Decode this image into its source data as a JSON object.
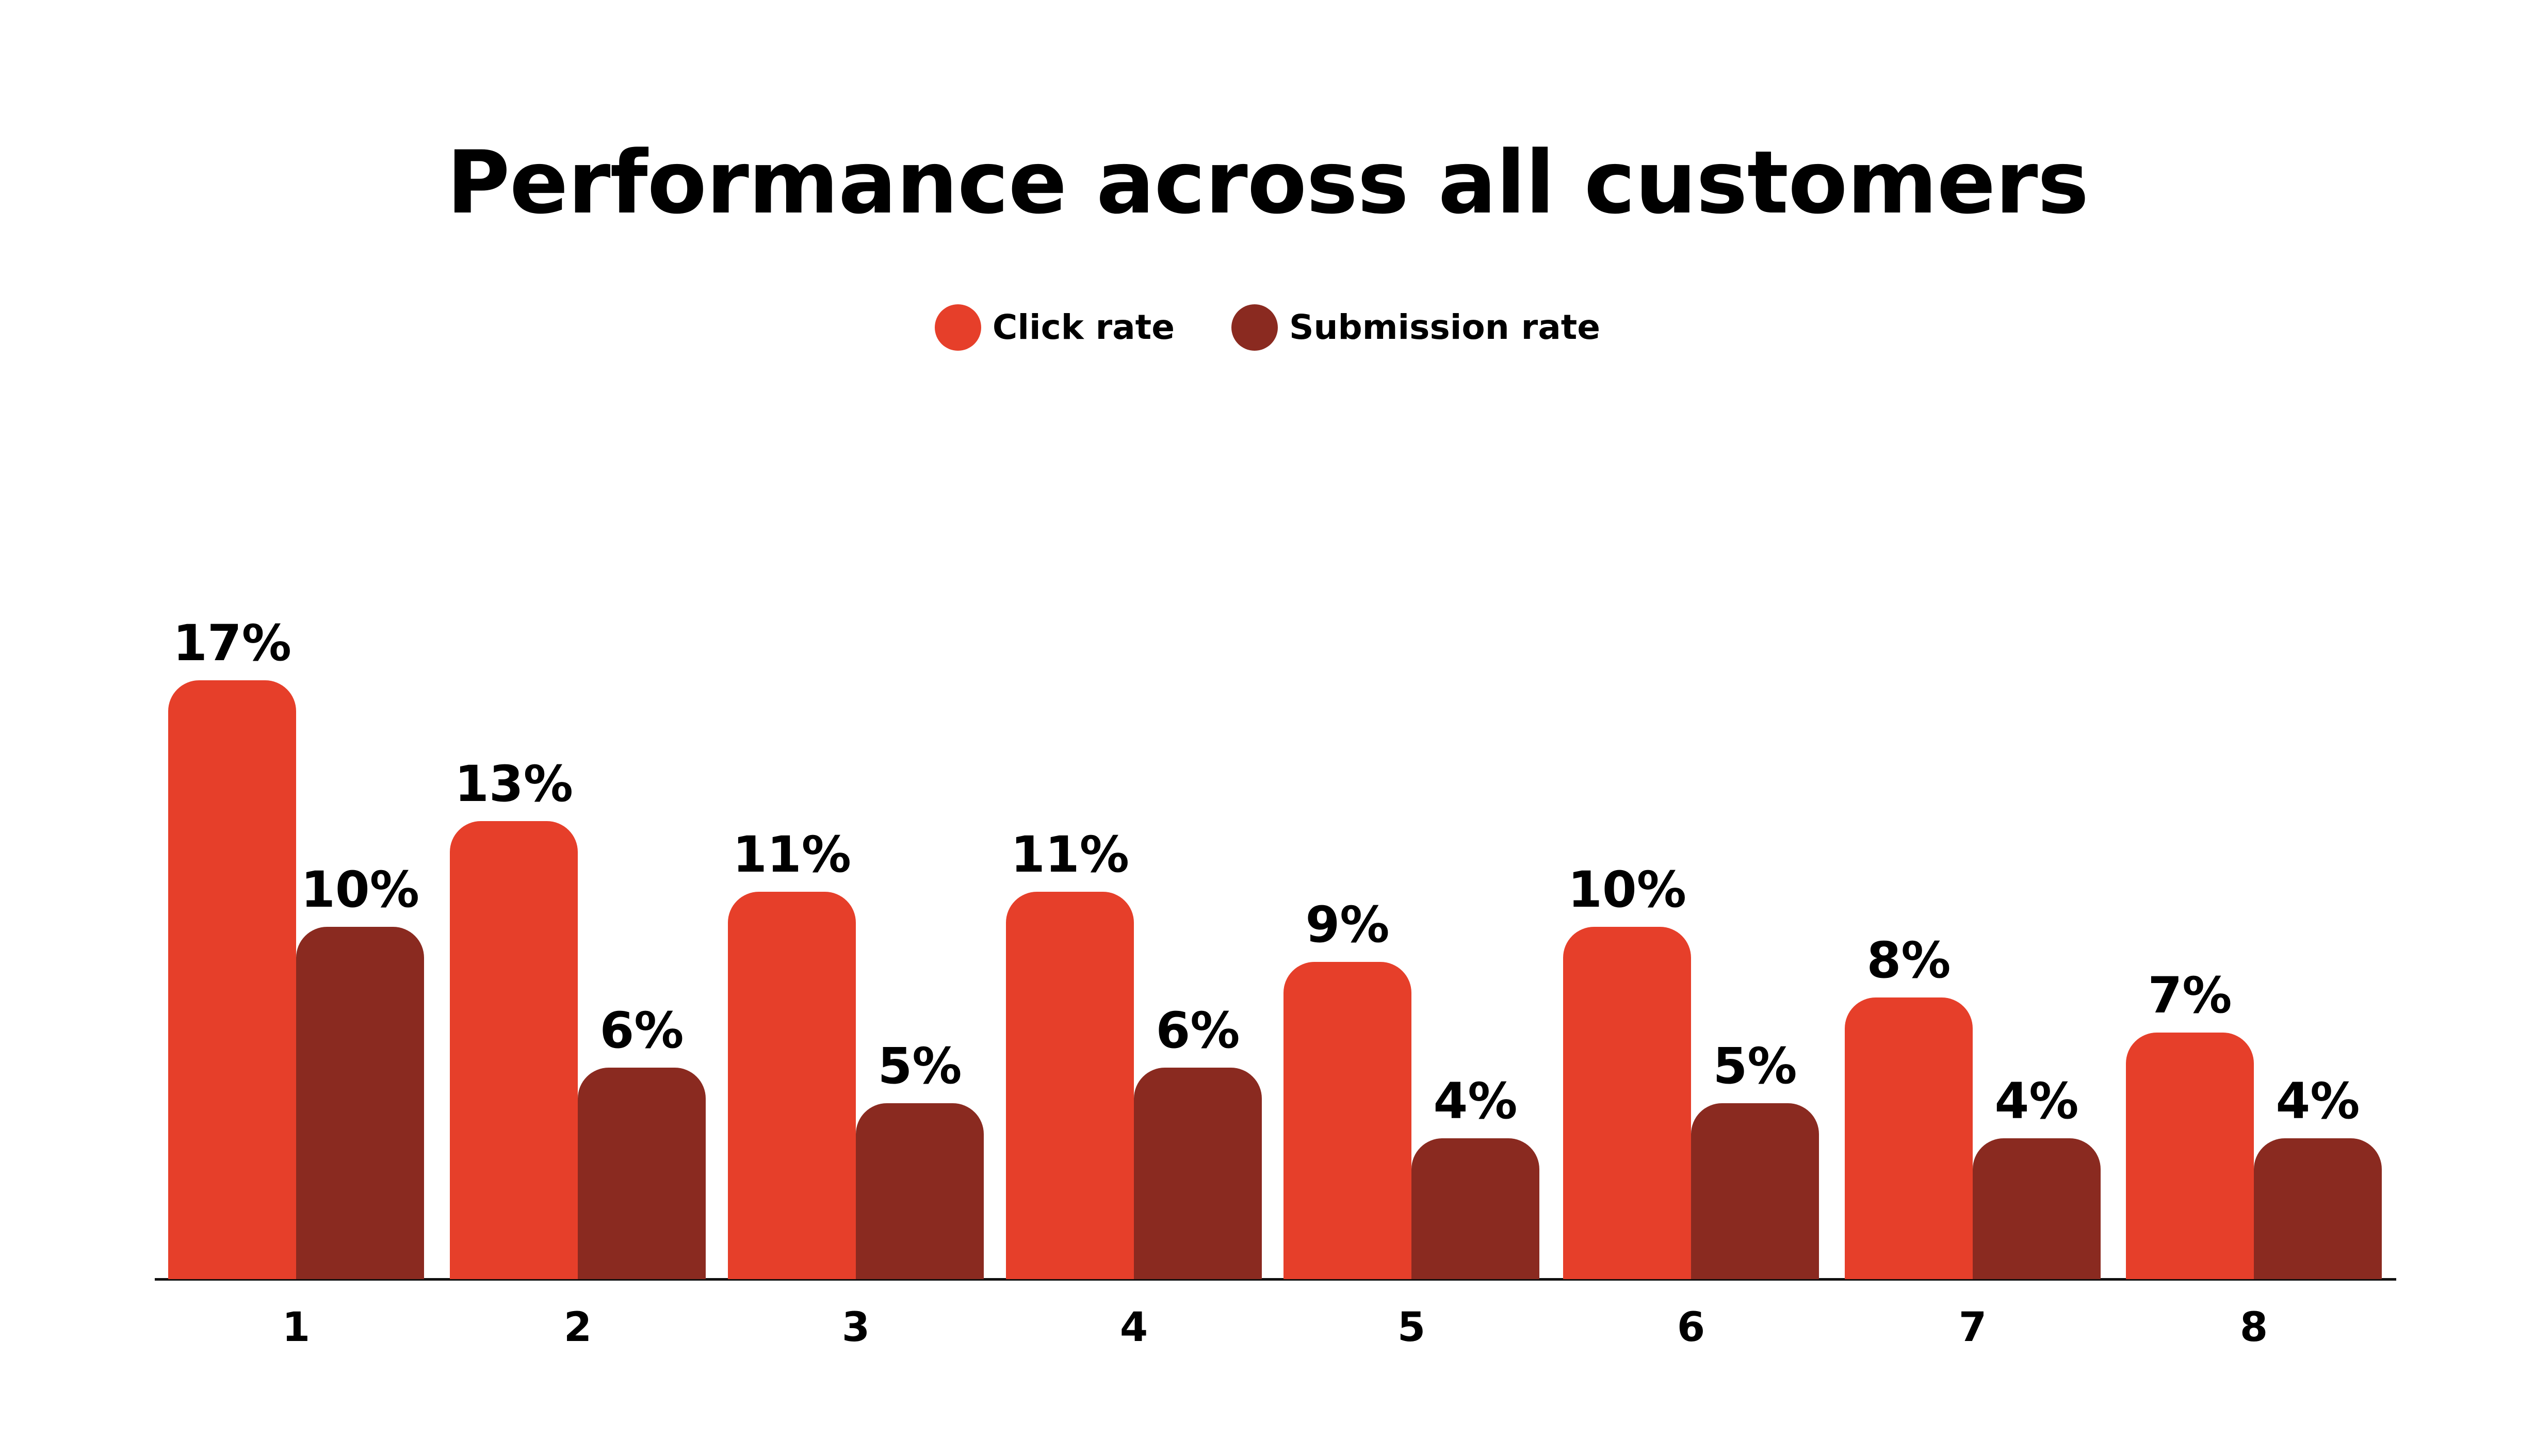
{
  "title": "Performance across all customers",
  "legend": [
    {
      "label": "Click rate",
      "color": "#E63F2A"
    },
    {
      "label": "Submission rate",
      "color": "#8A2A20"
    }
  ],
  "chart_data": {
    "type": "bar",
    "title": "Performance across all customers",
    "xlabel": "",
    "ylabel": "",
    "categories": [
      "1",
      "2",
      "3",
      "4",
      "5",
      "6",
      "7",
      "8"
    ],
    "series": [
      {
        "name": "Click rate",
        "color": "#E63F2A",
        "values": [
          17,
          13,
          11,
          11,
          9,
          10,
          8,
          7
        ],
        "labels": [
          "17%",
          "13%",
          "11%",
          "11%",
          "9%",
          "10%",
          "8%",
          "7%"
        ]
      },
      {
        "name": "Submission rate",
        "color": "#8A2A20",
        "values": [
          10,
          6,
          5,
          6,
          4,
          5,
          4,
          4
        ],
        "labels": [
          "10%",
          "6%",
          "5%",
          "6%",
          "4%",
          "5%",
          "4%",
          "4%"
        ]
      }
    ],
    "ylim": [
      0,
      18
    ],
    "grid": false,
    "legend_position": "top-center",
    "value_format": "percent"
  }
}
